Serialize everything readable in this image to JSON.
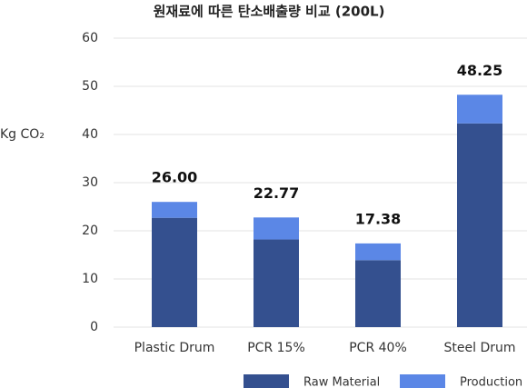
{
  "chart_data": {
    "type": "stacked_bar",
    "title": "원재료에 따른 탄소배출량 비교 (200L)",
    "y_label": "Kg CO₂",
    "categories": [
      "Plastic Drum",
      "PCR 15%",
      "PCR 40%",
      "Steel Drum"
    ],
    "series": [
      {
        "name": "Raw Material",
        "color": "#34508f",
        "values": [
          22.7,
          18.2,
          13.9,
          42.3
        ]
      },
      {
        "name": "Production",
        "color": "#5b87e6",
        "values": [
          3.3,
          4.57,
          3.48,
          5.95
        ]
      }
    ],
    "totals": [
      26,
      22.77,
      17.38,
      48.25
    ],
    "total_labels": [
      "26.00",
      "22.77",
      "17.38",
      "48.25"
    ],
    "ylim": [
      0,
      60
    ],
    "yticks": [
      0,
      10,
      20,
      30,
      40,
      50,
      60
    ],
    "grid": true,
    "legend": "bottom"
  }
}
